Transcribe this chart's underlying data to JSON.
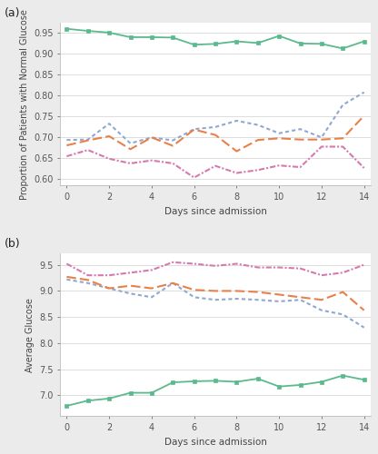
{
  "panel_a": {
    "title": "(a)",
    "ylabel": "Proportion of Patients with Normal Glucose",
    "xlabel": "Days since admission",
    "xlim": [
      -0.3,
      14.3
    ],
    "ylim": [
      0.585,
      0.975
    ],
    "yticks": [
      0.6,
      0.65,
      0.7,
      0.75,
      0.8,
      0.85,
      0.9,
      0.95
    ],
    "xticks": [
      0,
      2,
      4,
      6,
      8,
      10,
      12,
      14
    ],
    "series": [
      {
        "x": [
          0,
          1,
          2,
          3,
          4,
          5,
          6,
          7,
          8,
          9,
          10,
          11,
          12,
          13,
          14
        ],
        "y": [
          0.96,
          0.955,
          0.951,
          0.94,
          0.94,
          0.939,
          0.922,
          0.924,
          0.93,
          0.926,
          0.943,
          0.925,
          0.924,
          0.913,
          0.93
        ],
        "color": "#5aba8c",
        "linestyle": "solid",
        "marker": "s",
        "linewidth": 1.3,
        "markersize": 2.5
      },
      {
        "x": [
          0,
          1,
          2,
          3,
          4,
          5,
          6,
          7,
          8,
          9,
          10,
          11,
          12,
          13,
          14
        ],
        "y": [
          0.694,
          0.695,
          0.733,
          0.686,
          0.7,
          0.693,
          0.72,
          0.725,
          0.74,
          0.73,
          0.71,
          0.72,
          0.7,
          0.778,
          0.808
        ],
        "color": "#8fa8d0",
        "linestyle": "dotted",
        "marker": null,
        "linewidth": 1.5,
        "markersize": 3
      },
      {
        "x": [
          0,
          1,
          2,
          3,
          4,
          5,
          6,
          7,
          8,
          9,
          10,
          11,
          12,
          13,
          14
        ],
        "y": [
          0.681,
          0.693,
          0.703,
          0.672,
          0.7,
          0.68,
          0.719,
          0.706,
          0.667,
          0.694,
          0.698,
          0.695,
          0.695,
          0.698,
          0.752
        ],
        "color": "#e8804a",
        "linestyle": "dashed",
        "marker": null,
        "linewidth": 1.5,
        "markersize": 3
      },
      {
        "x": [
          0,
          1,
          2,
          3,
          4,
          5,
          6,
          7,
          8,
          9,
          10,
          11,
          12,
          13,
          14
        ],
        "y": [
          0.655,
          0.67,
          0.649,
          0.638,
          0.645,
          0.638,
          0.604,
          0.632,
          0.615,
          0.622,
          0.633,
          0.629,
          0.678,
          0.678,
          0.627
        ],
        "color": "#d47ab0",
        "linestyle": "dashdot",
        "marker": null,
        "linewidth": 1.5,
        "markersize": 3
      }
    ]
  },
  "panel_b": {
    "title": "(b)",
    "ylabel": "Average Glucose",
    "xlabel": "Days since admission",
    "xlim": [
      -0.3,
      14.3
    ],
    "ylim": [
      6.6,
      9.72
    ],
    "yticks": [
      7.0,
      7.5,
      8.0,
      8.5,
      9.0,
      9.5
    ],
    "xticks": [
      0,
      2,
      4,
      6,
      8,
      10,
      12,
      14
    ],
    "series": [
      {
        "x": [
          0,
          1,
          2,
          3,
          4,
          5,
          6,
          7,
          8,
          9,
          10,
          11,
          12,
          13,
          14
        ],
        "y": [
          6.8,
          6.9,
          6.94,
          7.05,
          7.05,
          7.25,
          7.27,
          7.28,
          7.26,
          7.32,
          7.17,
          7.2,
          7.26,
          7.38,
          7.3
        ],
        "color": "#5aba8c",
        "linestyle": "solid",
        "marker": "s",
        "linewidth": 1.3,
        "markersize": 2.5
      },
      {
        "x": [
          0,
          1,
          2,
          3,
          4,
          5,
          6,
          7,
          8,
          9,
          10,
          11,
          12,
          13,
          14
        ],
        "y": [
          9.22,
          9.15,
          9.05,
          8.95,
          8.88,
          9.15,
          8.88,
          8.83,
          8.85,
          8.83,
          8.8,
          8.83,
          8.63,
          8.55,
          8.3
        ],
        "color": "#8fa8d0",
        "linestyle": "dotted",
        "marker": null,
        "linewidth": 1.5,
        "markersize": 3
      },
      {
        "x": [
          0,
          1,
          2,
          3,
          4,
          5,
          6,
          7,
          8,
          9,
          10,
          11,
          12,
          13,
          14
        ],
        "y": [
          9.27,
          9.21,
          9.05,
          9.1,
          9.05,
          9.15,
          9.02,
          9.0,
          9.0,
          8.98,
          8.93,
          8.88,
          8.83,
          8.98,
          8.63
        ],
        "color": "#e8804a",
        "linestyle": "dashed",
        "marker": null,
        "linewidth": 1.5,
        "markersize": 3
      },
      {
        "x": [
          0,
          1,
          2,
          3,
          4,
          5,
          6,
          7,
          8,
          9,
          10,
          11,
          12,
          13,
          14
        ],
        "y": [
          9.52,
          9.3,
          9.3,
          9.35,
          9.4,
          9.55,
          9.52,
          9.48,
          9.52,
          9.45,
          9.45,
          9.43,
          9.3,
          9.35,
          9.5
        ],
        "color": "#d47ab0",
        "linestyle": "dashdot",
        "marker": null,
        "linewidth": 1.5,
        "markersize": 3
      }
    ]
  },
  "background_color": "#ebebeb",
  "panel_bg": "#ffffff"
}
